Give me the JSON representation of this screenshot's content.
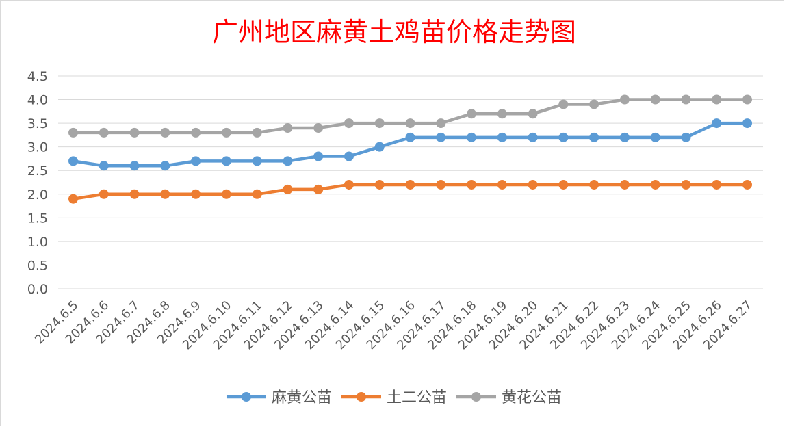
{
  "chart_data": {
    "type": "line",
    "title": "广州地区麻黄土鸡苗价格走势图",
    "xlabel": "",
    "ylabel": "",
    "categories": [
      "2024.6.5",
      "2024.6.6",
      "2024.6.7",
      "2024.6.8",
      "2024.6.9",
      "2024.6.10",
      "2024.6.11",
      "2024.6.12",
      "2024.6.13",
      "2024.6.14",
      "2024.6.15",
      "2024.6.16",
      "2024.6.17",
      "2024.6.18",
      "2024.6.19",
      "2024.6.20",
      "2024.6.21",
      "2024.6.22",
      "2024.6.23",
      "2024.6.24",
      "2024.6.25",
      "2024.6.26",
      "2024.6.27"
    ],
    "ylim": [
      0,
      4.5
    ],
    "yticks": [
      "0.0",
      "0.5",
      "1.0",
      "1.5",
      "2.0",
      "2.5",
      "3.0",
      "3.5",
      "4.0",
      "4.5"
    ],
    "grid": true,
    "legend_position": "bottom",
    "series": [
      {
        "name": "麻黄公苗",
        "color": "#5B9BD5",
        "values": [
          2.7,
          2.6,
          2.6,
          2.6,
          2.7,
          2.7,
          2.7,
          2.7,
          2.8,
          2.8,
          3.0,
          3.2,
          3.2,
          3.2,
          3.2,
          3.2,
          3.2,
          3.2,
          3.2,
          3.2,
          3.2,
          3.5,
          3.5
        ]
      },
      {
        "name": "土二公苗",
        "color": "#ED7D31",
        "values": [
          1.9,
          2.0,
          2.0,
          2.0,
          2.0,
          2.0,
          2.0,
          2.1,
          2.1,
          2.2,
          2.2,
          2.2,
          2.2,
          2.2,
          2.2,
          2.2,
          2.2,
          2.2,
          2.2,
          2.2,
          2.2,
          2.2,
          2.2
        ]
      },
      {
        "name": "黄花公苗",
        "color": "#A5A5A5",
        "values": [
          3.3,
          3.3,
          3.3,
          3.3,
          3.3,
          3.3,
          3.3,
          3.4,
          3.4,
          3.5,
          3.5,
          3.5,
          3.5,
          3.7,
          3.7,
          3.7,
          3.9,
          3.9,
          4.0,
          4.0,
          4.0,
          4.0,
          4.0
        ]
      }
    ],
    "title_color": "#FF0000"
  }
}
